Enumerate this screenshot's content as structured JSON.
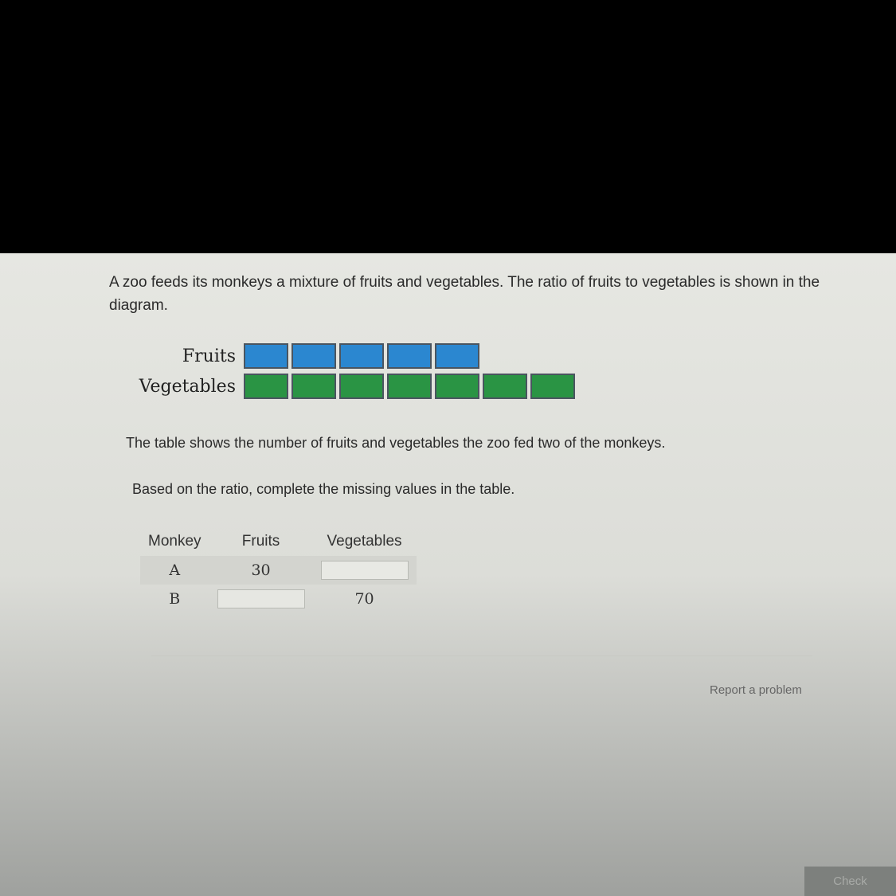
{
  "question": "A zoo feeds its monkeys a mixture of fruits and vegetables. The ratio of fruits to vegetables is shown in the diagram.",
  "diagram": {
    "rows": [
      {
        "label": "Fruits",
        "count": 5,
        "color": "#2b87d0"
      },
      {
        "label": "Vegetables",
        "count": 7,
        "color": "#2a9444"
      }
    ]
  },
  "table_intro": "The table shows the number of fruits and vegetables the zoo fed two of the monkeys.",
  "instruction": "Based on the ratio, complete the missing values in the table.",
  "table": {
    "headers": [
      "Monkey",
      "Fruits",
      "Vegetables"
    ],
    "rows": [
      {
        "monkey": "A",
        "fruits": "30",
        "vegetables": ""
      },
      {
        "monkey": "B",
        "fruits": "",
        "vegetables": "70"
      }
    ]
  },
  "report_link": "Report a problem",
  "check_button": "Check"
}
